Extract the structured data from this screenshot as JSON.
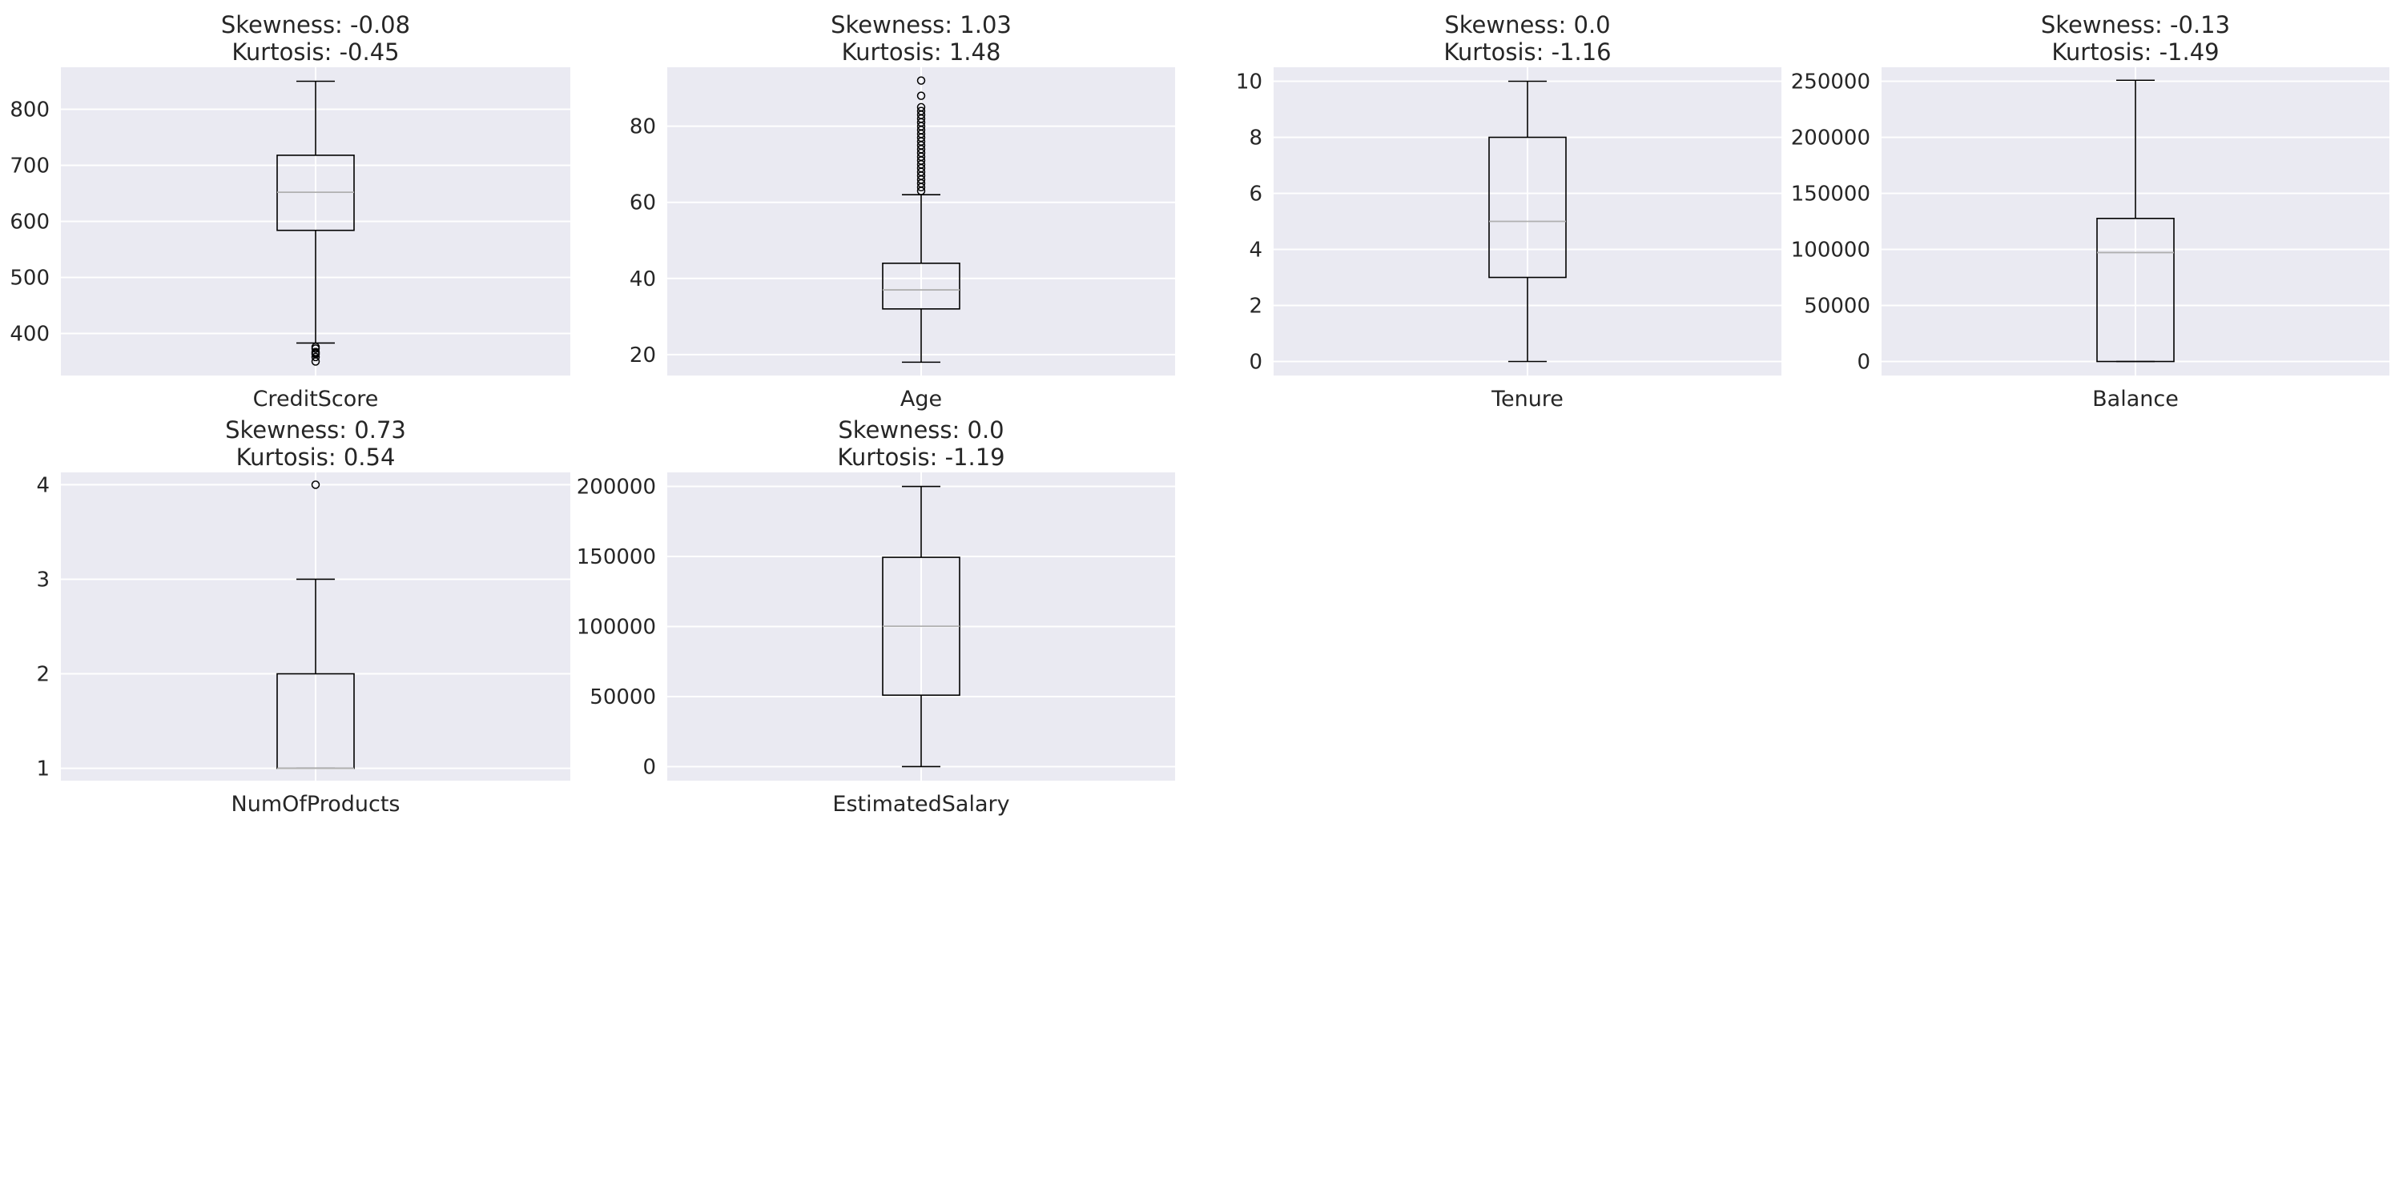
{
  "chart_data": [
    {
      "type": "box",
      "title_lines": [
        "Skewness: -0.08",
        "Kurtosis: -0.45"
      ],
      "xlabel": "CreditScore",
      "ylim": [
        325,
        875
      ],
      "yticks": [
        400,
        500,
        600,
        700,
        800
      ],
      "stats": {
        "whisker_low": 383,
        "q1": 584,
        "median": 652,
        "q3": 718,
        "whisker_high": 850
      },
      "outliers": [
        350,
        358,
        363,
        365,
        367,
        373,
        376
      ]
    },
    {
      "type": "box",
      "title_lines": [
        "Skewness: 1.03",
        "Kurtosis: 1.48"
      ],
      "xlabel": "Age",
      "ylim": [
        14.5,
        95.5
      ],
      "yticks": [
        20,
        40,
        60,
        80
      ],
      "stats": {
        "whisker_low": 18,
        "q1": 32,
        "median": 37,
        "q3": 44,
        "whisker_high": 62
      },
      "outliers": [
        63,
        64,
        65,
        66,
        67,
        68,
        69,
        70,
        71,
        72,
        73,
        74,
        75,
        76,
        77,
        78,
        79,
        80,
        81,
        82,
        83,
        84,
        85,
        88,
        92
      ]
    },
    {
      "type": "box",
      "title_lines": [
        "Skewness: 0.0",
        "Kurtosis: -1.16"
      ],
      "xlabel": "Tenure",
      "ylim": [
        -0.5,
        10.5
      ],
      "yticks": [
        0,
        2,
        4,
        6,
        8,
        10
      ],
      "stats": {
        "whisker_low": 0,
        "q1": 3,
        "median": 5,
        "q3": 8,
        "whisker_high": 10
      },
      "outliers": []
    },
    {
      "type": "box",
      "title_lines": [
        "Skewness: -0.13",
        "Kurtosis: -1.49"
      ],
      "xlabel": "Balance",
      "ylim": [
        -12500,
        262500
      ],
      "yticks": [
        0,
        50000,
        100000,
        150000,
        200000,
        250000
      ],
      "stats": {
        "whisker_low": 0,
        "q1": 0,
        "median": 97199,
        "q3": 127644,
        "whisker_high": 250898
      },
      "outliers": []
    },
    {
      "type": "box",
      "title_lines": [
        "Skewness: 0.73",
        "Kurtosis: 0.54"
      ],
      "xlabel": "NumOfProducts",
      "ylim": [
        0.87,
        4.13
      ],
      "yticks": [
        1,
        2,
        3,
        4
      ],
      "stats": {
        "whisker_low": 1,
        "q1": 1,
        "median": 1,
        "q3": 2,
        "whisker_high": 3
      },
      "outliers": [
        4
      ]
    },
    {
      "type": "box",
      "title_lines": [
        "Skewness: 0.0",
        "Kurtosis: -1.19"
      ],
      "xlabel": "EstimatedSalary",
      "ylim": [
        -10000,
        210000
      ],
      "yticks": [
        0,
        50000,
        100000,
        150000,
        200000
      ],
      "stats": {
        "whisker_low": 12,
        "q1": 51002,
        "median": 100194,
        "q3": 149388,
        "whisker_high": 199992
      },
      "outliers": []
    }
  ],
  "colors": {
    "panel_bg": "#eaeaf2",
    "grid": "#ffffff",
    "box": "#000000",
    "median": "#b0b0b0",
    "text": "#262626"
  }
}
